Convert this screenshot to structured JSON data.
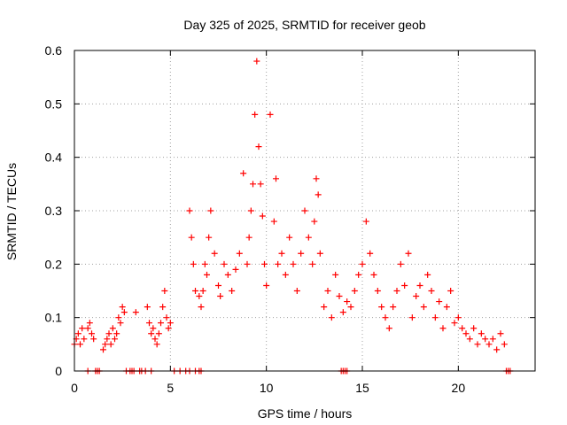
{
  "chart_data": {
    "type": "scatter",
    "title": "Day 325 of 2025, SRMTID for receiver geob",
    "xlabel": "GPS time / hours",
    "ylabel": "SRMTID / TECUs",
    "xlim": [
      0,
      24
    ],
    "ylim": [
      0,
      0.6
    ],
    "xticks": [
      0,
      5,
      10,
      15,
      20
    ],
    "yticks": [
      0,
      0.1,
      0.2,
      0.3,
      0.4,
      0.5,
      0.6
    ],
    "xtick_labels": [
      "0",
      "5",
      "10",
      "15",
      "20"
    ],
    "ytick_labels": [
      "0",
      "0.1",
      "0.2",
      "0.3",
      "0.4",
      "0.5",
      "0.6"
    ],
    "grid": true,
    "marker": "+",
    "series": [
      {
        "name": "SRMTID",
        "color": "#ff0000",
        "x": [
          0.0,
          0.1,
          0.2,
          0.3,
          0.4,
          0.5,
          0.7,
          0.8,
          0.9,
          1.0,
          1.5,
          1.6,
          1.7,
          1.8,
          1.9,
          2.0,
          2.1,
          2.2,
          2.3,
          2.4,
          2.5,
          2.6,
          3.2,
          3.8,
          3.9,
          4.0,
          4.1,
          4.2,
          4.3,
          4.4,
          4.5,
          4.6,
          4.7,
          4.8,
          4.9,
          5.0,
          6.0,
          6.1,
          6.2,
          6.3,
          6.5,
          6.6,
          6.7,
          6.8,
          6.9,
          7.0,
          7.1,
          7.3,
          7.5,
          7.6,
          7.8,
          8.0,
          8.2,
          8.4,
          8.6,
          8.8,
          9.0,
          9.1,
          9.2,
          9.3,
          9.4,
          9.5,
          9.6,
          9.7,
          9.8,
          9.9,
          10.0,
          10.2,
          10.4,
          10.5,
          10.6,
          10.8,
          11.0,
          11.2,
          11.4,
          11.6,
          11.8,
          12.0,
          12.2,
          12.4,
          12.5,
          12.6,
          12.7,
          12.8,
          13.0,
          13.2,
          13.4,
          13.6,
          13.8,
          14.0,
          14.2,
          14.4,
          14.6,
          14.8,
          15.0,
          15.2,
          15.4,
          15.6,
          15.8,
          16.0,
          16.2,
          16.4,
          16.6,
          16.8,
          17.0,
          17.2,
          17.4,
          17.6,
          17.8,
          18.0,
          18.2,
          18.4,
          18.6,
          18.8,
          19.0,
          19.2,
          19.4,
          19.6,
          19.8,
          20.0,
          20.2,
          20.4,
          20.6,
          20.8,
          21.0,
          21.2,
          21.4,
          21.6,
          21.8,
          22.0,
          22.2,
          22.4
        ],
        "y": [
          0.05,
          0.06,
          0.07,
          0.05,
          0.08,
          0.06,
          0.08,
          0.09,
          0.07,
          0.06,
          0.04,
          0.05,
          0.06,
          0.07,
          0.05,
          0.08,
          0.06,
          0.07,
          0.1,
          0.09,
          0.12,
          0.11,
          0.11,
          0.12,
          0.09,
          0.07,
          0.08,
          0.06,
          0.05,
          0.07,
          0.09,
          0.12,
          0.15,
          0.1,
          0.08,
          0.09,
          0.3,
          0.25,
          0.2,
          0.15,
          0.14,
          0.12,
          0.15,
          0.2,
          0.18,
          0.25,
          0.3,
          0.22,
          0.16,
          0.14,
          0.2,
          0.18,
          0.15,
          0.19,
          0.22,
          0.37,
          0.2,
          0.25,
          0.3,
          0.35,
          0.48,
          0.58,
          0.42,
          0.35,
          0.29,
          0.2,
          0.16,
          0.48,
          0.28,
          0.36,
          0.2,
          0.22,
          0.18,
          0.25,
          0.2,
          0.15,
          0.22,
          0.3,
          0.25,
          0.2,
          0.28,
          0.36,
          0.33,
          0.22,
          0.12,
          0.15,
          0.1,
          0.18,
          0.14,
          0.11,
          0.13,
          0.12,
          0.15,
          0.18,
          0.2,
          0.28,
          0.22,
          0.18,
          0.15,
          0.12,
          0.1,
          0.08,
          0.12,
          0.15,
          0.2,
          0.16,
          0.22,
          0.1,
          0.14,
          0.16,
          0.12,
          0.18,
          0.15,
          0.1,
          0.13,
          0.08,
          0.12,
          0.15,
          0.09,
          0.1,
          0.08,
          0.07,
          0.06,
          0.08,
          0.05,
          0.07,
          0.06,
          0.05,
          0.06,
          0.04,
          0.07,
          0.05
        ],
        "zero_markers_x": [
          0.7,
          1.1,
          1.2,
          1.3,
          2.7,
          2.9,
          3.0,
          3.1,
          3.4,
          3.5,
          3.7,
          4.0,
          5.2,
          5.5,
          5.8,
          6.0,
          6.3,
          6.5,
          6.6,
          13.9,
          14.0,
          14.1,
          14.2,
          22.5,
          22.6,
          22.7
        ]
      }
    ]
  }
}
